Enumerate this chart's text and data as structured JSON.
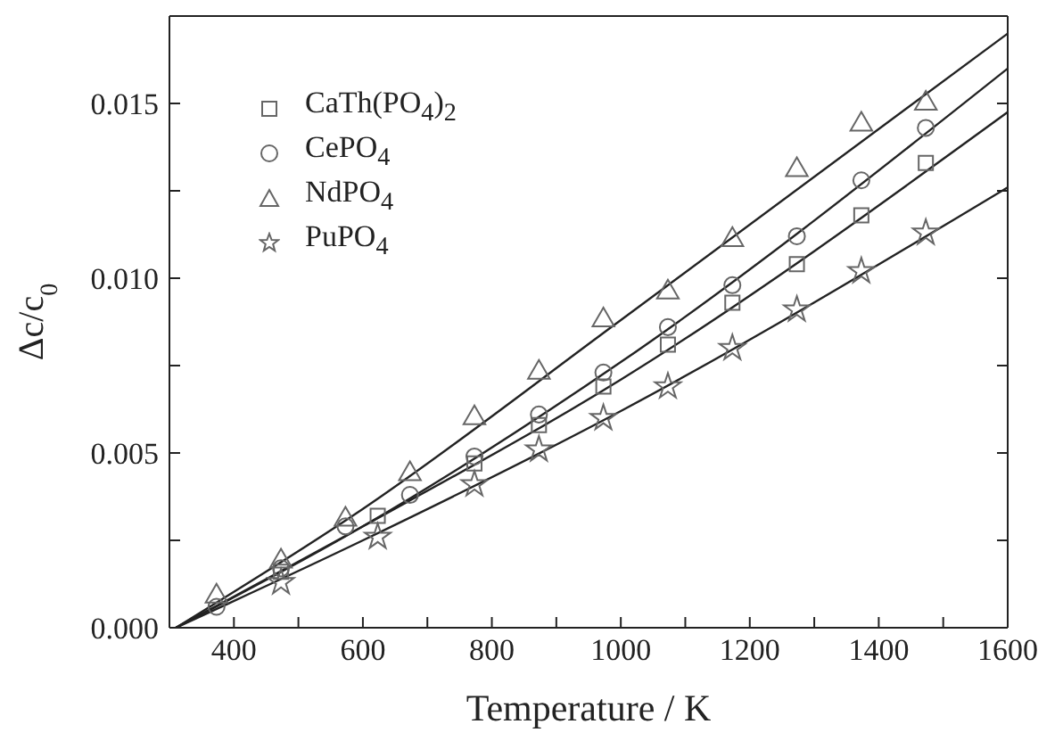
{
  "chart_data": {
    "type": "scatter",
    "xlabel": "Temperature / K",
    "ylabel": "Δc/c$_{0}$",
    "xlim": [
      300,
      1600
    ],
    "ylim": [
      0,
      0.0175
    ],
    "xticks": [
      {
        "value": 300,
        "label": null
      },
      400,
      {
        "value": 500,
        "label": null
      },
      600,
      {
        "value": 700,
        "label": null
      },
      800,
      {
        "value": 900,
        "label": null
      },
      1000,
      {
        "value": 1100,
        "label": null
      },
      1200,
      {
        "value": 1300,
        "label": null
      },
      1400,
      {
        "value": 1500,
        "label": null
      },
      1600
    ],
    "yticks": [
      {
        "value": 0,
        "label": "0.000"
      },
      {
        "value": 0.0025,
        "label": null
      },
      {
        "value": 0.005,
        "label": "0.005"
      },
      {
        "value": 0.0075,
        "label": null
      },
      {
        "value": 0.01,
        "label": "0.010"
      },
      {
        "value": 0.0125,
        "label": null
      },
      {
        "value": 0.015,
        "label": "0.015"
      }
    ],
    "legend": "top left",
    "series": [
      {
        "name": "CaTh(PO$_{4}$)$_{2}$",
        "color": "#666666",
        "marker": "square",
        "x": [
          473,
          623,
          773,
          873,
          973,
          1073,
          1173,
          1273,
          1373,
          1473
        ],
        "values": [
          0.0016,
          0.0032,
          0.0047,
          0.0058,
          0.0069,
          0.0081,
          0.0093,
          0.0104,
          0.0118,
          0.0133
        ]
      },
      {
        "name": "CePO$_{4}$",
        "color": "#666666",
        "marker": "circle",
        "x": [
          373,
          473,
          573,
          673,
          773,
          873,
          973,
          1073,
          1173,
          1273,
          1373,
          1473
        ],
        "values": [
          0.0006,
          0.0017,
          0.0029,
          0.0038,
          0.0049,
          0.0061,
          0.0073,
          0.0086,
          0.0098,
          0.0112,
          0.0128,
          0.0143
        ]
      },
      {
        "name": "NdPO$_{4}$",
        "color": "#666666",
        "marker": "triangle",
        "x": [
          373,
          473,
          573,
          673,
          773,
          873,
          973,
          1073,
          1173,
          1273,
          1373,
          1473
        ],
        "values": [
          0.0009,
          0.0019,
          0.0031,
          0.0044,
          0.006,
          0.0073,
          0.0088,
          0.0096,
          0.0111,
          0.0131,
          0.0144,
          0.015
        ]
      },
      {
        "name": "PuPO$_{4}$",
        "color": "#666666",
        "marker": "star",
        "x": [
          473,
          623,
          773,
          873,
          973,
          1073,
          1173,
          1273,
          1373,
          1473
        ],
        "values": [
          0.0013,
          0.0026,
          0.0041,
          0.0051,
          0.006,
          0.0069,
          0.008,
          0.0091,
          0.0102,
          0.0113
        ]
      },
      {
        "type": "line",
        "color": "#222222",
        "marker": "none",
        "x": [
          310,
          600,
          1000,
          1600
        ],
        "values": [
          0,
          0.0029,
          0.0071,
          0.01475
        ]
      },
      {
        "type": "line",
        "color": "#222222",
        "marker": "none",
        "x": [
          310,
          600,
          1000,
          1600
        ],
        "values": [
          0,
          0.0029,
          0.0076,
          0.016
        ]
      },
      {
        "type": "line",
        "color": "#222222",
        "marker": "none",
        "x": [
          310,
          600,
          1000,
          1600
        ],
        "values": [
          0,
          0.0034,
          0.0088,
          0.017
        ]
      },
      {
        "type": "line",
        "color": "#222222",
        "marker": "none",
        "x": [
          310,
          600,
          1000,
          1600
        ],
        "values": [
          0,
          0.0025,
          0.0062,
          0.0126
        ]
      }
    ]
  }
}
